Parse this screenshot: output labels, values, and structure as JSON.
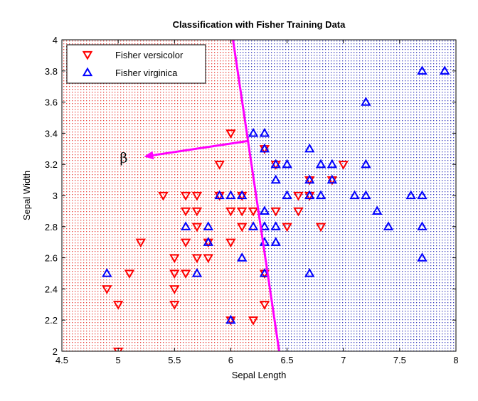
{
  "chart_data": {
    "type": "scatter",
    "title": "Classification with Fisher Training Data",
    "xlabel": "Sepal Length",
    "ylabel": "Sepal Width",
    "xlim": [
      4.5,
      8
    ],
    "ylim": [
      2,
      4
    ],
    "xticks": [
      "4.5",
      "5",
      "5.5",
      "6",
      "6.5",
      "7",
      "7.5",
      "8"
    ],
    "yticks": [
      "2",
      "2.2",
      "2.4",
      "2.6",
      "2.8",
      "3",
      "3.2",
      "3.4",
      "3.6",
      "3.8",
      "4"
    ],
    "grid": false,
    "legend_position": "top-left",
    "background_regions": [
      {
        "side": "left",
        "color": "#e8413c"
      },
      {
        "side": "right",
        "color": "#3b3fbf"
      }
    ],
    "decision_boundary": {
      "x1": 6.02,
      "y1": 4.0,
      "x2": 6.43,
      "y2": 2.0,
      "color": "#ff00ff"
    },
    "direction_arrow": {
      "x1": 6.15,
      "y1": 3.35,
      "x2": 5.23,
      "y2": 3.25,
      "label": "β",
      "color": "#ff00ff"
    },
    "series": [
      {
        "name": "Fisher versicolor",
        "marker": "triangle-down",
        "color": "#ff0000",
        "points": [
          [
            5.0,
            2.0
          ],
          [
            4.9,
            2.4
          ],
          [
            5.0,
            2.3
          ],
          [
            5.1,
            2.5
          ],
          [
            5.2,
            2.7
          ],
          [
            5.4,
            3.0
          ],
          [
            5.5,
            2.6
          ],
          [
            5.5,
            2.5
          ],
          [
            5.5,
            2.4
          ],
          [
            5.5,
            2.3
          ],
          [
            5.6,
            3.0
          ],
          [
            5.6,
            2.9
          ],
          [
            5.6,
            2.7
          ],
          [
            5.6,
            2.5
          ],
          [
            5.7,
            3.0
          ],
          [
            5.7,
            2.9
          ],
          [
            5.7,
            2.8
          ],
          [
            5.7,
            2.6
          ],
          [
            5.8,
            2.7
          ],
          [
            5.8,
            2.6
          ],
          [
            5.9,
            3.2
          ],
          [
            5.9,
            3.0
          ],
          [
            6.0,
            3.4
          ],
          [
            6.0,
            2.9
          ],
          [
            6.0,
            2.7
          ],
          [
            6.0,
            2.2
          ],
          [
            6.1,
            3.0
          ],
          [
            6.1,
            2.9
          ],
          [
            6.1,
            2.8
          ],
          [
            6.2,
            2.9
          ],
          [
            6.2,
            2.2
          ],
          [
            6.3,
            3.3
          ],
          [
            6.3,
            2.5
          ],
          [
            6.3,
            2.3
          ],
          [
            6.4,
            3.2
          ],
          [
            6.4,
            2.9
          ],
          [
            6.5,
            2.8
          ],
          [
            6.6,
            3.0
          ],
          [
            6.6,
            2.9
          ],
          [
            6.7,
            3.1
          ],
          [
            6.7,
            3.0
          ],
          [
            6.8,
            2.8
          ],
          [
            6.9,
            3.1
          ],
          [
            7.0,
            3.2
          ]
        ]
      },
      {
        "name": "Fisher virginica",
        "marker": "triangle-up",
        "color": "#0000ff",
        "points": [
          [
            4.9,
            2.5
          ],
          [
            5.6,
            2.8
          ],
          [
            5.7,
            2.5
          ],
          [
            5.8,
            2.8
          ],
          [
            5.8,
            2.7
          ],
          [
            5.9,
            3.0
          ],
          [
            6.0,
            3.0
          ],
          [
            6.0,
            2.2
          ],
          [
            6.1,
            3.0
          ],
          [
            6.1,
            2.6
          ],
          [
            6.2,
            3.4
          ],
          [
            6.2,
            2.8
          ],
          [
            6.3,
            3.4
          ],
          [
            6.3,
            3.3
          ],
          [
            6.3,
            2.9
          ],
          [
            6.3,
            2.8
          ],
          [
            6.3,
            2.7
          ],
          [
            6.3,
            2.5
          ],
          [
            6.4,
            3.2
          ],
          [
            6.4,
            3.1
          ],
          [
            6.4,
            2.8
          ],
          [
            6.4,
            2.7
          ],
          [
            6.5,
            3.2
          ],
          [
            6.5,
            3.0
          ],
          [
            6.7,
            3.3
          ],
          [
            6.7,
            3.1
          ],
          [
            6.7,
            3.0
          ],
          [
            6.7,
            2.5
          ],
          [
            6.8,
            3.2
          ],
          [
            6.8,
            3.0
          ],
          [
            6.9,
            3.2
          ],
          [
            6.9,
            3.1
          ],
          [
            7.1,
            3.0
          ],
          [
            7.2,
            3.6
          ],
          [
            7.2,
            3.2
          ],
          [
            7.2,
            3.0
          ],
          [
            7.3,
            2.9
          ],
          [
            7.4,
            2.8
          ],
          [
            7.6,
            3.0
          ],
          [
            7.7,
            3.8
          ],
          [
            7.7,
            3.0
          ],
          [
            7.7,
            2.8
          ],
          [
            7.7,
            2.6
          ],
          [
            7.9,
            3.8
          ]
        ]
      }
    ]
  }
}
